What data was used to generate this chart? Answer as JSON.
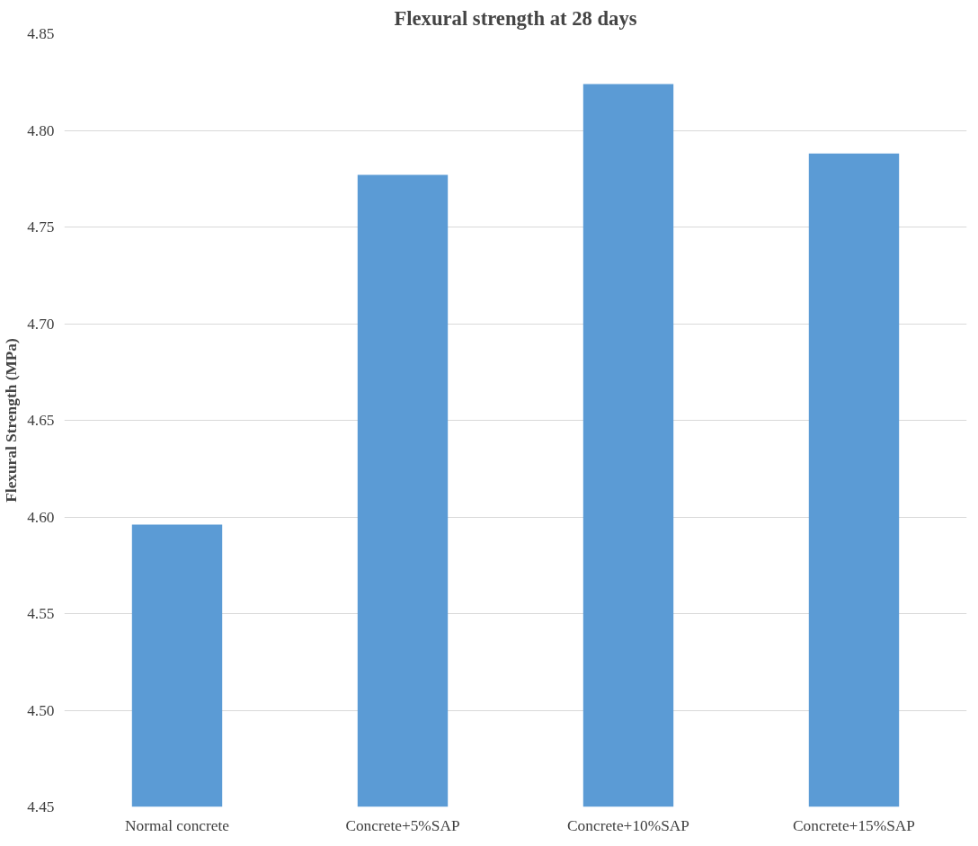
{
  "chart_data": {
    "type": "bar",
    "title": "Flexural strength at 28 days",
    "ylabel": "Flexural Strength (MPa)",
    "categories": [
      "Normal concrete",
      "Concrete+5%SAP",
      "Concrete+10%SAP",
      "Concrete+15%SAP"
    ],
    "values": [
      4.596,
      4.777,
      4.824,
      4.788
    ],
    "color": "#5b9bd5",
    "ylim": [
      4.45,
      4.85
    ],
    "yticks": [
      {
        "value": 4.45,
        "label": "4.45"
      },
      {
        "value": 4.5,
        "label": "4.50"
      },
      {
        "value": 4.55,
        "label": "4.55"
      },
      {
        "value": 4.6,
        "label": "4.60"
      },
      {
        "value": 4.65,
        "label": "4.65"
      },
      {
        "value": 4.7,
        "label": "4.70"
      },
      {
        "value": 4.75,
        "label": "4.75"
      },
      {
        "value": 4.8,
        "label": "4.80"
      },
      {
        "value": 4.85,
        "label": "4.85"
      }
    ],
    "grid": "y"
  }
}
